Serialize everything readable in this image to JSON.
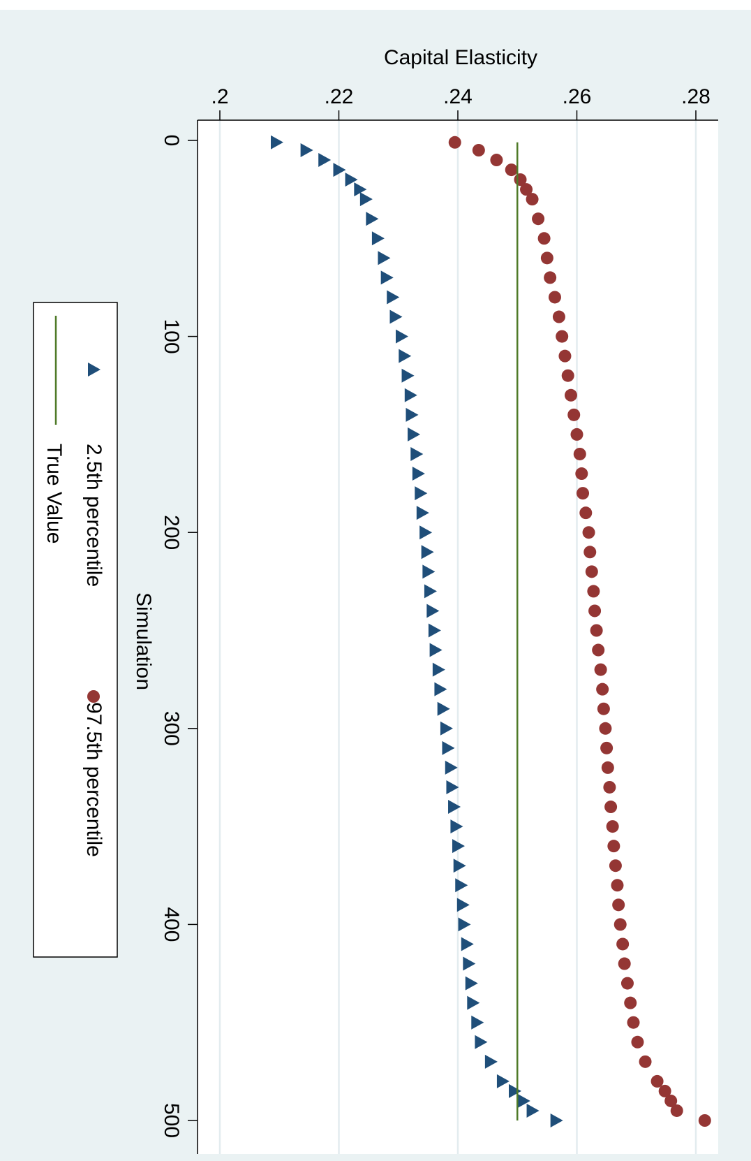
{
  "chart_data": {
    "type": "scatter",
    "orientation": "rotated-90-clockwise",
    "xlabel": "Simulation",
    "ylabel": "Capital Elasticity",
    "xlim": [
      0,
      500
    ],
    "ylim": [
      0.2,
      0.28
    ],
    "x_ticks": [
      0,
      100,
      200,
      300,
      400,
      500
    ],
    "x_tick_labels": [
      "0",
      "100",
      "200",
      "300",
      "400",
      "500"
    ],
    "y_ticks": [
      0.2,
      0.22,
      0.24,
      0.26,
      0.28
    ],
    "y_tick_labels": [
      ".2",
      ".22",
      ".24",
      ".26",
      ".28"
    ],
    "grid": true,
    "legend_position": "left",
    "series": [
      {
        "name": "2.5th percentile",
        "marker": "triangle",
        "color": "#1f4e79",
        "x": [
          1,
          5,
          10,
          15,
          20,
          25,
          30,
          40,
          50,
          60,
          70,
          80,
          90,
          100,
          110,
          120,
          130,
          140,
          150,
          160,
          170,
          180,
          190,
          200,
          210,
          220,
          230,
          240,
          250,
          260,
          270,
          280,
          290,
          300,
          310,
          320,
          330,
          340,
          350,
          360,
          370,
          380,
          390,
          400,
          410,
          420,
          430,
          440,
          450,
          460,
          470,
          480,
          485,
          490,
          495,
          500
        ],
        "y": [
          0.2095,
          0.2145,
          0.2175,
          0.22,
          0.222,
          0.2235,
          0.2245,
          0.2255,
          0.2265,
          0.2275,
          0.228,
          0.229,
          0.2295,
          0.2305,
          0.231,
          0.2315,
          0.232,
          0.2322,
          0.2325,
          0.233,
          0.2333,
          0.2337,
          0.234,
          0.2345,
          0.2348,
          0.235,
          0.2353,
          0.2357,
          0.236,
          0.2362,
          0.2367,
          0.237,
          0.2375,
          0.238,
          0.2383,
          0.2388,
          0.239,
          0.2393,
          0.2397,
          0.24,
          0.2402,
          0.2405,
          0.2408,
          0.241,
          0.2415,
          0.2418,
          0.2422,
          0.2425,
          0.2432,
          0.2438,
          0.2455,
          0.2475,
          0.2495,
          0.251,
          0.2525,
          0.2565
        ]
      },
      {
        "name": "97.5th percentile",
        "marker": "circle",
        "color": "#943634",
        "x": [
          1,
          5,
          10,
          15,
          20,
          25,
          30,
          40,
          50,
          60,
          70,
          80,
          90,
          100,
          110,
          120,
          130,
          140,
          150,
          160,
          170,
          180,
          190,
          200,
          210,
          220,
          230,
          240,
          250,
          260,
          270,
          280,
          290,
          300,
          310,
          320,
          330,
          340,
          350,
          360,
          370,
          380,
          390,
          400,
          410,
          420,
          430,
          440,
          450,
          460,
          470,
          480,
          485,
          490,
          495,
          500
        ],
        "y": [
          0.2395,
          0.2435,
          0.2465,
          0.249,
          0.2505,
          0.2515,
          0.2525,
          0.2535,
          0.2545,
          0.255,
          0.2555,
          0.2563,
          0.257,
          0.2575,
          0.258,
          0.2585,
          0.259,
          0.2595,
          0.26,
          0.2605,
          0.2608,
          0.261,
          0.2615,
          0.262,
          0.2622,
          0.2625,
          0.2628,
          0.263,
          0.2633,
          0.2636,
          0.264,
          0.2643,
          0.2645,
          0.2648,
          0.265,
          0.2652,
          0.2655,
          0.2657,
          0.266,
          0.2662,
          0.2665,
          0.2668,
          0.267,
          0.2673,
          0.2677,
          0.268,
          0.2685,
          0.269,
          0.2695,
          0.2702,
          0.2715,
          0.2735,
          0.2748,
          0.2758,
          0.2768,
          0.2815
        ]
      },
      {
        "name": "True Value",
        "marker": "line",
        "color": "#4f7a28",
        "x": [
          1,
          500
        ],
        "y": [
          0.25,
          0.25
        ]
      }
    ]
  }
}
